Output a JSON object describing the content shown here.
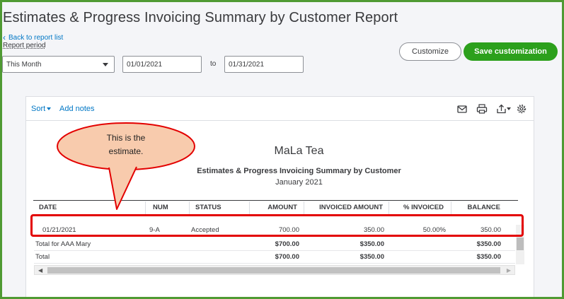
{
  "header": {
    "title": "Estimates & Progress Invoicing Summary by Customer Report",
    "back_link": "Back to report list",
    "report_period_label": "Report period",
    "period_value": "This Month",
    "from_date": "01/01/2021",
    "to_label": "to",
    "to_date": "01/31/2021",
    "customize_label": "Customize",
    "save_label": "Save customization"
  },
  "toolbar": {
    "sort_label": "Sort",
    "add_notes_label": "Add notes",
    "icons": [
      "mail-icon",
      "print-icon",
      "export-icon",
      "gear-icon"
    ]
  },
  "report": {
    "company": "MaLa Tea",
    "title": "Estimates & Progress Invoicing Summary by Customer",
    "date_range": "January 2021",
    "columns": [
      "DATE",
      "NUM",
      "STATUS",
      "AMOUNT",
      "INVOICED AMOUNT",
      "% INVOICED",
      "BALANCE"
    ],
    "rows": [
      {
        "date": "01/21/2021",
        "num": "9-A",
        "status": "Accepted",
        "amount": "700.00",
        "invoiced": "350.00",
        "pct": "50.00%",
        "balance": "350.00"
      }
    ],
    "customer_total": {
      "label": "Total for AAA Mary",
      "amount": "$700.00",
      "invoiced": "$350.00",
      "balance": "$350.00"
    },
    "grand_total": {
      "label": "Total",
      "amount": "$700.00",
      "invoiced": "$350.00",
      "balance": "$350.00"
    }
  },
  "annotation": {
    "callout_line1": "This is the",
    "callout_line2": "estimate."
  },
  "colors": {
    "accent_green": "#2ca01c",
    "frame_green": "#4f9a33",
    "link_blue": "#0077c5",
    "highlight_red": "#e30000",
    "callout_fill": "#f8cbad"
  }
}
